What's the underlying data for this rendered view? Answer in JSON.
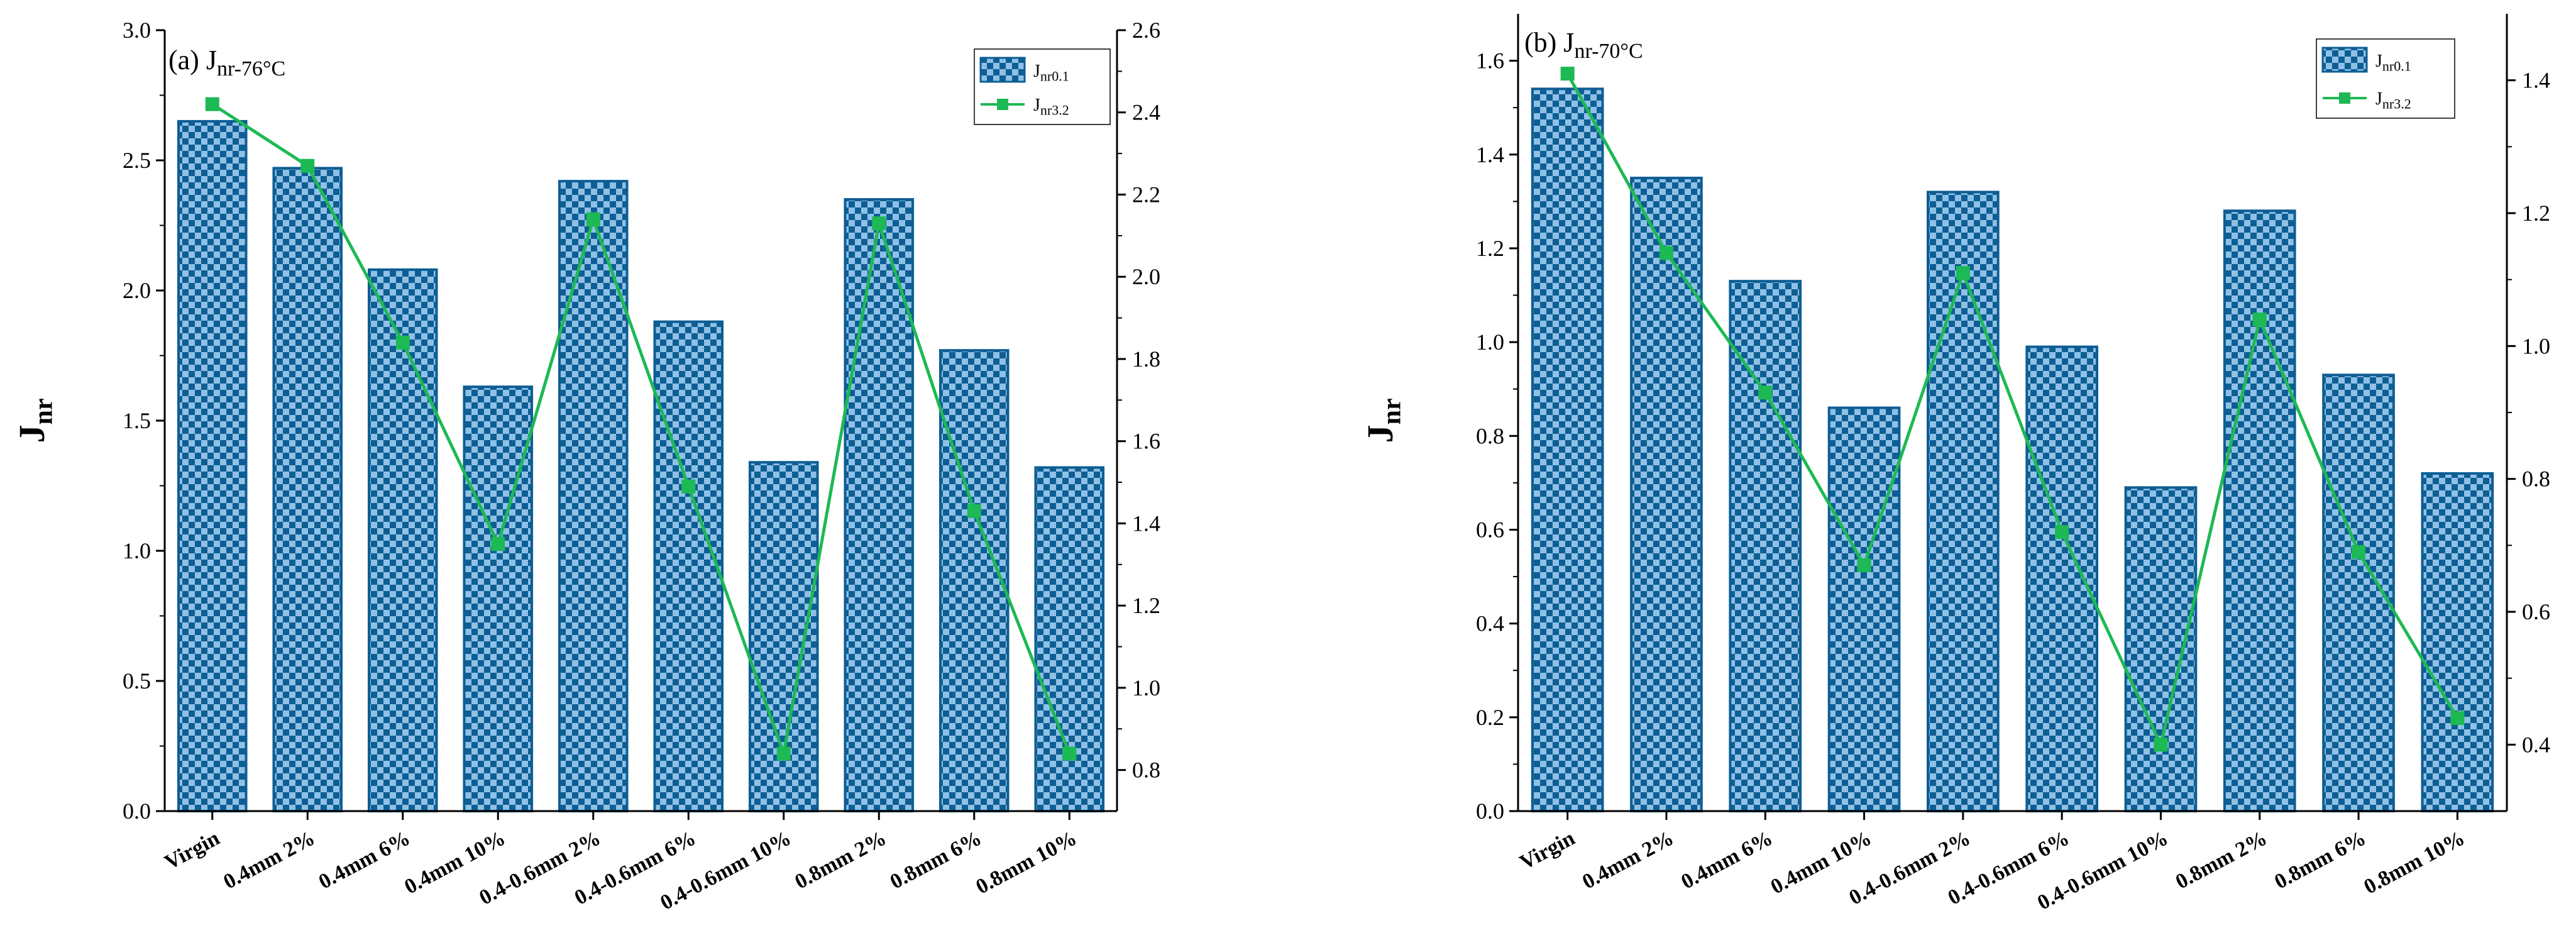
{
  "chart_data": [
    {
      "type": "bar",
      "panel": "(a)",
      "title": "J",
      "title_sub": "nr-76°C",
      "ylabel": "J",
      "ylabel_sub": "nr",
      "categories": [
        "Virgin",
        "0.4mm 2%",
        "0.4mm 6%",
        "0.4mm 10%",
        "0.4-0.6mm 2%",
        "0.4-0.6mm 6%",
        "0.4-0.6mm 10%",
        "0.8mm 2%",
        "0.8mm 6%",
        "0.8mm 10%"
      ],
      "ylim": [
        0,
        3.0
      ],
      "yticks": [
        "0.0",
        "0.5",
        "1.0",
        "1.5",
        "2.0",
        "2.5",
        "3.0"
      ],
      "y2lim": [
        0.7,
        2.6
      ],
      "y2ticks": [
        "0.8",
        "1.0",
        "1.2",
        "1.4",
        "1.6",
        "1.8",
        "2.0",
        "2.2",
        "2.4",
        "2.6"
      ],
      "series": [
        {
          "name": "J",
          "name_sub": "nr0.1",
          "kind": "bar",
          "axis": "left",
          "values": [
            2.65,
            2.47,
            2.08,
            1.63,
            2.42,
            1.88,
            1.34,
            2.35,
            1.77,
            1.32
          ]
        },
        {
          "name": "J",
          "name_sub": "nr3.2",
          "kind": "line",
          "axis": "right",
          "values": [
            2.42,
            2.27,
            1.84,
            1.35,
            2.14,
            1.49,
            0.84,
            2.13,
            1.43,
            0.84
          ]
        }
      ],
      "legend": "top-right",
      "colors": {
        "bar_dark": "#0d5e94",
        "bar_light": "#8fc0e6",
        "line": "#1db954"
      }
    },
    {
      "type": "bar",
      "panel": "(b)",
      "title": "J",
      "title_sub": "nr-70°C",
      "ylabel": "J",
      "ylabel_sub": "nr",
      "categories": [
        "Virgin",
        "0.4mm 2%",
        "0.4mm 6%",
        "0.4mm 10%",
        "0.4-0.6mm 2%",
        "0.4-0.6mm 6%",
        "0.4-0.6mm 10%",
        "0.8mm 2%",
        "0.8mm 6%",
        "0.8mm 10%"
      ],
      "ylim": [
        0,
        1.7
      ],
      "yticks": [
        "0.0",
        "0.2",
        "0.4",
        "0.6",
        "0.8",
        "1.0",
        "1.2",
        "1.4",
        "1.6"
      ],
      "y2lim": [
        0.3,
        1.5
      ],
      "y2ticks": [
        "0.4",
        "0.6",
        "0.8",
        "1.0",
        "1.2",
        "1.4"
      ],
      "series": [
        {
          "name": "J",
          "name_sub": "nr0.1",
          "kind": "bar",
          "axis": "left",
          "values": [
            1.54,
            1.35,
            1.13,
            0.86,
            1.32,
            0.99,
            0.69,
            1.28,
            0.93,
            0.72
          ]
        },
        {
          "name": "J",
          "name_sub": "nr3.2",
          "kind": "line",
          "axis": "right",
          "values": [
            1.41,
            1.14,
            0.93,
            0.67,
            1.11,
            0.72,
            0.4,
            1.04,
            0.69,
            0.44
          ]
        }
      ],
      "legend": "top-right",
      "colors": {
        "bar_dark": "#0d5e94",
        "bar_light": "#8fc0e6",
        "line": "#1db954"
      }
    }
  ]
}
